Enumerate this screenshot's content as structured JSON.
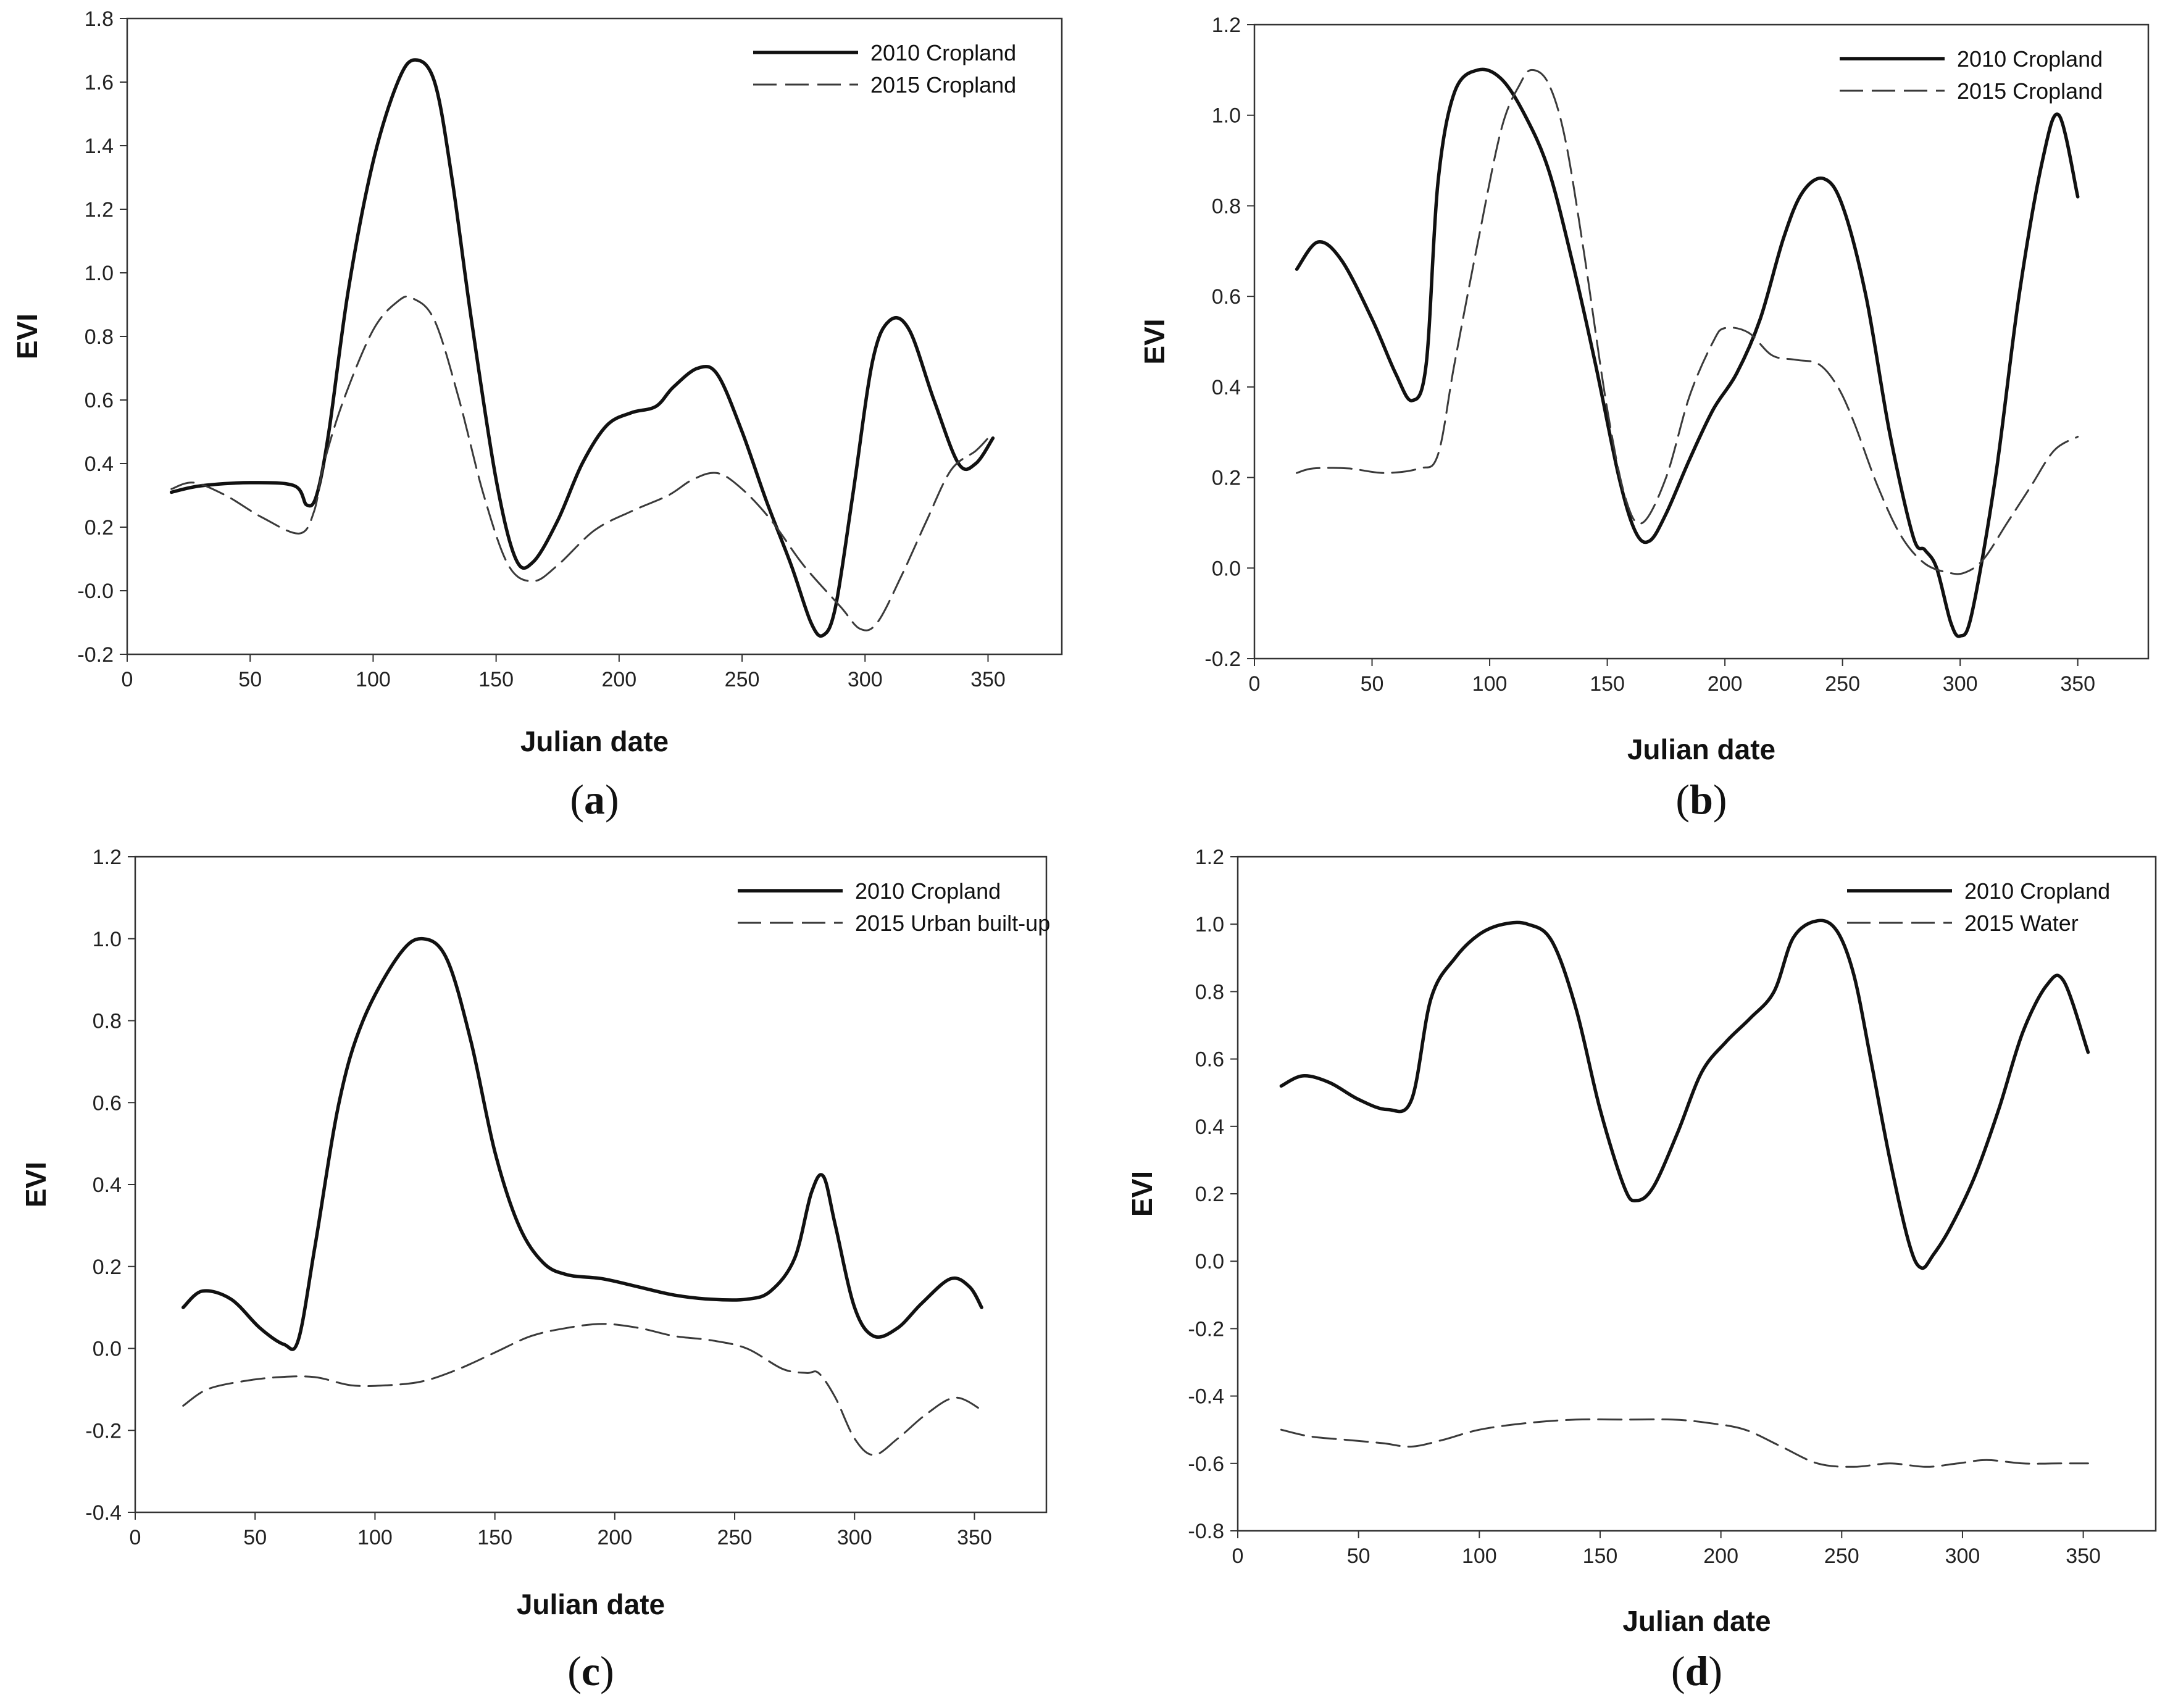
{
  "chart_data": [
    {
      "type": "line",
      "panel_label": "a",
      "xlabel": "Julian date",
      "ylabel": "EVI",
      "xlim": [
        0,
        380
      ],
      "ylim": [
        -0.2,
        1.8
      ],
      "xticks": [
        "0",
        "50",
        "100",
        "150",
        "200",
        "250",
        "300",
        "350"
      ],
      "yticks": [
        "-0.2",
        "-0.0",
        "0.2",
        "0.4",
        "0.6",
        "0.8",
        "1.0",
        "1.2",
        "1.4",
        "1.6",
        "1.8"
      ],
      "legend_position": "top-right",
      "series": [
        {
          "name": "2010 Cropland",
          "style": "solid",
          "x": [
            18,
            30,
            50,
            68,
            73,
            77,
            82,
            90,
            100,
            110,
            117,
            125,
            132,
            140,
            150,
            158,
            165,
            175,
            185,
            195,
            205,
            215,
            222,
            232,
            240,
            250,
            260,
            270,
            278,
            283,
            288,
            295,
            303,
            310,
            318,
            328,
            338,
            345,
            352
          ],
          "y": [
            0.31,
            0.33,
            0.34,
            0.33,
            0.27,
            0.3,
            0.5,
            0.95,
            1.35,
            1.6,
            1.67,
            1.6,
            1.3,
            0.85,
            0.35,
            0.1,
            0.09,
            0.22,
            0.4,
            0.52,
            0.56,
            0.58,
            0.64,
            0.7,
            0.68,
            0.5,
            0.28,
            0.08,
            -0.1,
            -0.14,
            -0.05,
            0.3,
            0.72,
            0.85,
            0.82,
            0.6,
            0.4,
            0.4,
            0.48
          ]
        },
        {
          "name": "2015 Cropland",
          "style": "dashed",
          "x": [
            18,
            27,
            40,
            55,
            70,
            76,
            80,
            88,
            100,
            110,
            116,
            125,
            135,
            145,
            155,
            165,
            175,
            190,
            205,
            220,
            230,
            240,
            250,
            262,
            275,
            290,
            298,
            305,
            315,
            325,
            335,
            345,
            350
          ],
          "y": [
            0.32,
            0.34,
            0.3,
            0.23,
            0.18,
            0.25,
            0.4,
            0.6,
            0.82,
            0.91,
            0.92,
            0.85,
            0.6,
            0.3,
            0.08,
            0.03,
            0.08,
            0.19,
            0.25,
            0.3,
            0.35,
            0.37,
            0.32,
            0.22,
            0.08,
            -0.05,
            -0.12,
            -0.1,
            0.05,
            0.22,
            0.38,
            0.44,
            0.48
          ]
        }
      ]
    },
    {
      "type": "line",
      "panel_label": "b",
      "xlabel": "Julian date",
      "ylabel": "EVI",
      "xlim": [
        0,
        380
      ],
      "ylim": [
        -0.2,
        1.2
      ],
      "xticks": [
        "0",
        "50",
        "100",
        "150",
        "200",
        "250",
        "300",
        "350"
      ],
      "yticks": [
        "-0.2",
        "0.0",
        "0.2",
        "0.4",
        "0.6",
        "0.8",
        "1.0",
        "1.2"
      ],
      "legend_position": "top-right",
      "series": [
        {
          "name": "2010 Cropland",
          "style": "solid",
          "x": [
            18,
            27,
            37,
            50,
            60,
            67,
            73,
            78,
            85,
            95,
            105,
            115,
            125,
            135,
            145,
            155,
            162,
            168,
            175,
            185,
            195,
            205,
            215,
            225,
            233,
            242,
            250,
            260,
            270,
            280,
            285,
            290,
            296,
            300,
            305,
            315,
            325,
            335,
            342,
            350
          ],
          "y": [
            0.66,
            0.72,
            0.68,
            0.55,
            0.43,
            0.37,
            0.45,
            0.85,
            1.05,
            1.1,
            1.08,
            1.0,
            0.88,
            0.68,
            0.45,
            0.2,
            0.08,
            0.06,
            0.12,
            0.24,
            0.35,
            0.43,
            0.55,
            0.73,
            0.83,
            0.86,
            0.8,
            0.6,
            0.3,
            0.07,
            0.04,
            0.0,
            -0.12,
            -0.15,
            -0.1,
            0.2,
            0.6,
            0.9,
            1.0,
            0.82
          ]
        },
        {
          "name": "2015 Cropland",
          "style": "dashed",
          "x": [
            18,
            25,
            40,
            55,
            70,
            78,
            85,
            95,
            105,
            113,
            118,
            125,
            132,
            140,
            150,
            158,
            165,
            175,
            185,
            195,
            200,
            210,
            220,
            230,
            240,
            248,
            255,
            265,
            275,
            285,
            295,
            302,
            310,
            320,
            330,
            340,
            350
          ],
          "y": [
            0.21,
            0.22,
            0.22,
            0.21,
            0.22,
            0.25,
            0.45,
            0.72,
            0.97,
            1.07,
            1.1,
            1.07,
            0.95,
            0.7,
            0.35,
            0.15,
            0.1,
            0.2,
            0.38,
            0.5,
            0.53,
            0.52,
            0.47,
            0.46,
            0.45,
            0.4,
            0.32,
            0.18,
            0.07,
            0.01,
            -0.01,
            -0.01,
            0.02,
            0.1,
            0.18,
            0.26,
            0.29
          ]
        }
      ]
    },
    {
      "type": "line",
      "panel_label": "c",
      "xlabel": "Julian date",
      "ylabel": "EVI",
      "xlim": [
        0,
        380
      ],
      "ylim": [
        -0.4,
        1.2
      ],
      "xticks": [
        "0",
        "50",
        "100",
        "150",
        "200",
        "250",
        "300",
        "350"
      ],
      "yticks": [
        "-0.4",
        "-0.2",
        "0.0",
        "0.2",
        "0.4",
        "0.6",
        "0.8",
        "1.0",
        "1.2"
      ],
      "legend_position": "top-right",
      "series": [
        {
          "name": "2010 Cropland",
          "style": "solid",
          "x": [
            20,
            28,
            40,
            52,
            62,
            68,
            75,
            85,
            95,
            110,
            120,
            130,
            140,
            150,
            160,
            170,
            180,
            195,
            210,
            225,
            240,
            255,
            265,
            275,
            282,
            287,
            292,
            300,
            308,
            318,
            328,
            340,
            348,
            353
          ],
          "y": [
            0.1,
            0.14,
            0.12,
            0.05,
            0.01,
            0.02,
            0.25,
            0.6,
            0.8,
            0.96,
            1.0,
            0.95,
            0.75,
            0.48,
            0.3,
            0.21,
            0.18,
            0.17,
            0.15,
            0.13,
            0.12,
            0.12,
            0.14,
            0.22,
            0.38,
            0.42,
            0.3,
            0.1,
            0.03,
            0.05,
            0.11,
            0.17,
            0.15,
            0.1
          ]
        },
        {
          "name": "2015 Urban built-up",
          "style": "dashed",
          "x": [
            20,
            30,
            45,
            60,
            75,
            90,
            105,
            120,
            135,
            150,
            165,
            180,
            195,
            210,
            225,
            240,
            255,
            270,
            280,
            285,
            292,
            300,
            308,
            318,
            330,
            342,
            353
          ],
          "y": [
            -0.14,
            -0.1,
            -0.08,
            -0.07,
            -0.07,
            -0.09,
            -0.09,
            -0.08,
            -0.05,
            -0.01,
            0.03,
            0.05,
            0.06,
            0.05,
            0.03,
            0.02,
            0.0,
            -0.05,
            -0.06,
            -0.06,
            -0.12,
            -0.22,
            -0.26,
            -0.22,
            -0.16,
            -0.12,
            -0.15
          ]
        }
      ]
    },
    {
      "type": "line",
      "panel_label": "d",
      "xlabel": "Julian date",
      "ylabel": "EVI",
      "xlim": [
        0,
        380
      ],
      "ylim": [
        -0.8,
        1.2
      ],
      "xticks": [
        "0",
        "50",
        "100",
        "150",
        "200",
        "250",
        "300",
        "350"
      ],
      "yticks": [
        "-0.8",
        "-0.6",
        "-0.4",
        "-0.2",
        "0.0",
        "0.2",
        "0.4",
        "0.6",
        "0.8",
        "1.0",
        "1.2"
      ],
      "legend_position": "top-right",
      "series": [
        {
          "name": "2010 Cropland",
          "style": "solid",
          "x": [
            18,
            27,
            38,
            50,
            62,
            72,
            80,
            90,
            100,
            110,
            120,
            130,
            140,
            150,
            160,
            165,
            172,
            182,
            192,
            202,
            212,
            222,
            230,
            240,
            248,
            255,
            262,
            270,
            278,
            283,
            288,
            295,
            305,
            315,
            325,
            335,
            342,
            352
          ],
          "y": [
            0.52,
            0.55,
            0.53,
            0.48,
            0.45,
            0.48,
            0.78,
            0.9,
            0.97,
            1.0,
            1.0,
            0.95,
            0.75,
            0.45,
            0.22,
            0.18,
            0.22,
            0.38,
            0.56,
            0.65,
            0.72,
            0.8,
            0.96,
            1.01,
            0.98,
            0.85,
            0.6,
            0.3,
            0.05,
            -0.02,
            0.02,
            0.1,
            0.25,
            0.45,
            0.68,
            0.82,
            0.83,
            0.62
          ]
        },
        {
          "name": "2015 Water",
          "style": "dashed",
          "x": [
            18,
            30,
            45,
            60,
            72,
            85,
            100,
            120,
            140,
            160,
            180,
            195,
            210,
            225,
            240,
            255,
            270,
            285,
            298,
            310,
            325,
            340,
            352
          ],
          "y": [
            -0.5,
            -0.52,
            -0.53,
            -0.54,
            -0.55,
            -0.53,
            -0.5,
            -0.48,
            -0.47,
            -0.47,
            -0.47,
            -0.48,
            -0.5,
            -0.55,
            -0.6,
            -0.61,
            -0.6,
            -0.61,
            -0.6,
            -0.59,
            -0.6,
            -0.6,
            -0.6
          ]
        }
      ]
    }
  ]
}
